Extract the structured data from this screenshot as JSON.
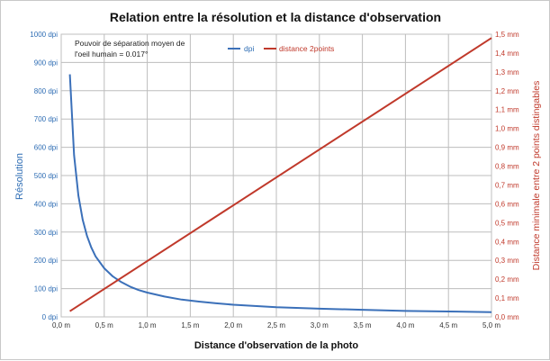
{
  "chart_data": {
    "type": "line",
    "title": "Relation entre la résolution et la distance d'observation",
    "xlabel": "Distance d'observation de la photo",
    "ylabel_left": "Résolution",
    "ylabel_right": "Distance minimale entre 2 points  distingables",
    "annotation": [
      "Pouvoir de séparation moyen de",
      "l'oeil humain = 0.017°"
    ],
    "xlim": [
      0,
      5
    ],
    "ylim_left": [
      0,
      1000
    ],
    "ylim_right": [
      0,
      1.5
    ],
    "grid": true,
    "legend_position": "top-center",
    "x_ticks": [
      "0,0 m",
      "0,5 m",
      "1,0 m",
      "1,5 m",
      "2,0 m",
      "2,5 m",
      "3,0 m",
      "3,5 m",
      "4,0 m",
      "4,5 m",
      "5,0 m"
    ],
    "y_left_ticks": [
      "0 dpi",
      "100 dpi",
      "200 dpi",
      "300 dpi",
      "400 dpi",
      "500 dpi",
      "600 dpi",
      "700 dpi",
      "800 dpi",
      "900 dpi",
      "1000 dpi"
    ],
    "y_right_ticks": [
      "0,0 mm",
      "0,1 mm",
      "0,2 mm",
      "0,3 mm",
      "0,4 mm",
      "0,5 mm",
      "0,6 mm",
      "0,7 mm",
      "0,8 mm",
      "0,9 mm",
      "1,0 mm",
      "1,1 mm",
      "1,2 mm",
      "1,3 mm",
      "1,4 mm",
      "1,5 mm"
    ],
    "series": [
      {
        "name": "dpi",
        "axis": "left",
        "color": "#3b70b9",
        "x": [
          0.1,
          0.15,
          0.2,
          0.25,
          0.3,
          0.35,
          0.4,
          0.5,
          0.6,
          0.7,
          0.8,
          0.9,
          1.0,
          1.2,
          1.4,
          1.6,
          1.8,
          2.0,
          2.5,
          3.0,
          3.5,
          4.0,
          4.5,
          5.0
        ],
        "y": [
          858,
          572,
          429,
          343,
          286,
          245,
          214,
          172,
          143,
          123,
          107,
          95,
          86,
          72,
          61,
          54,
          48,
          43,
          34,
          29,
          25,
          21,
          19,
          17
        ]
      },
      {
        "name": "distance 2points",
        "axis": "right",
        "color": "#c0392b",
        "x": [
          0.1,
          5.0
        ],
        "y": [
          0.03,
          1.48
        ]
      }
    ]
  }
}
